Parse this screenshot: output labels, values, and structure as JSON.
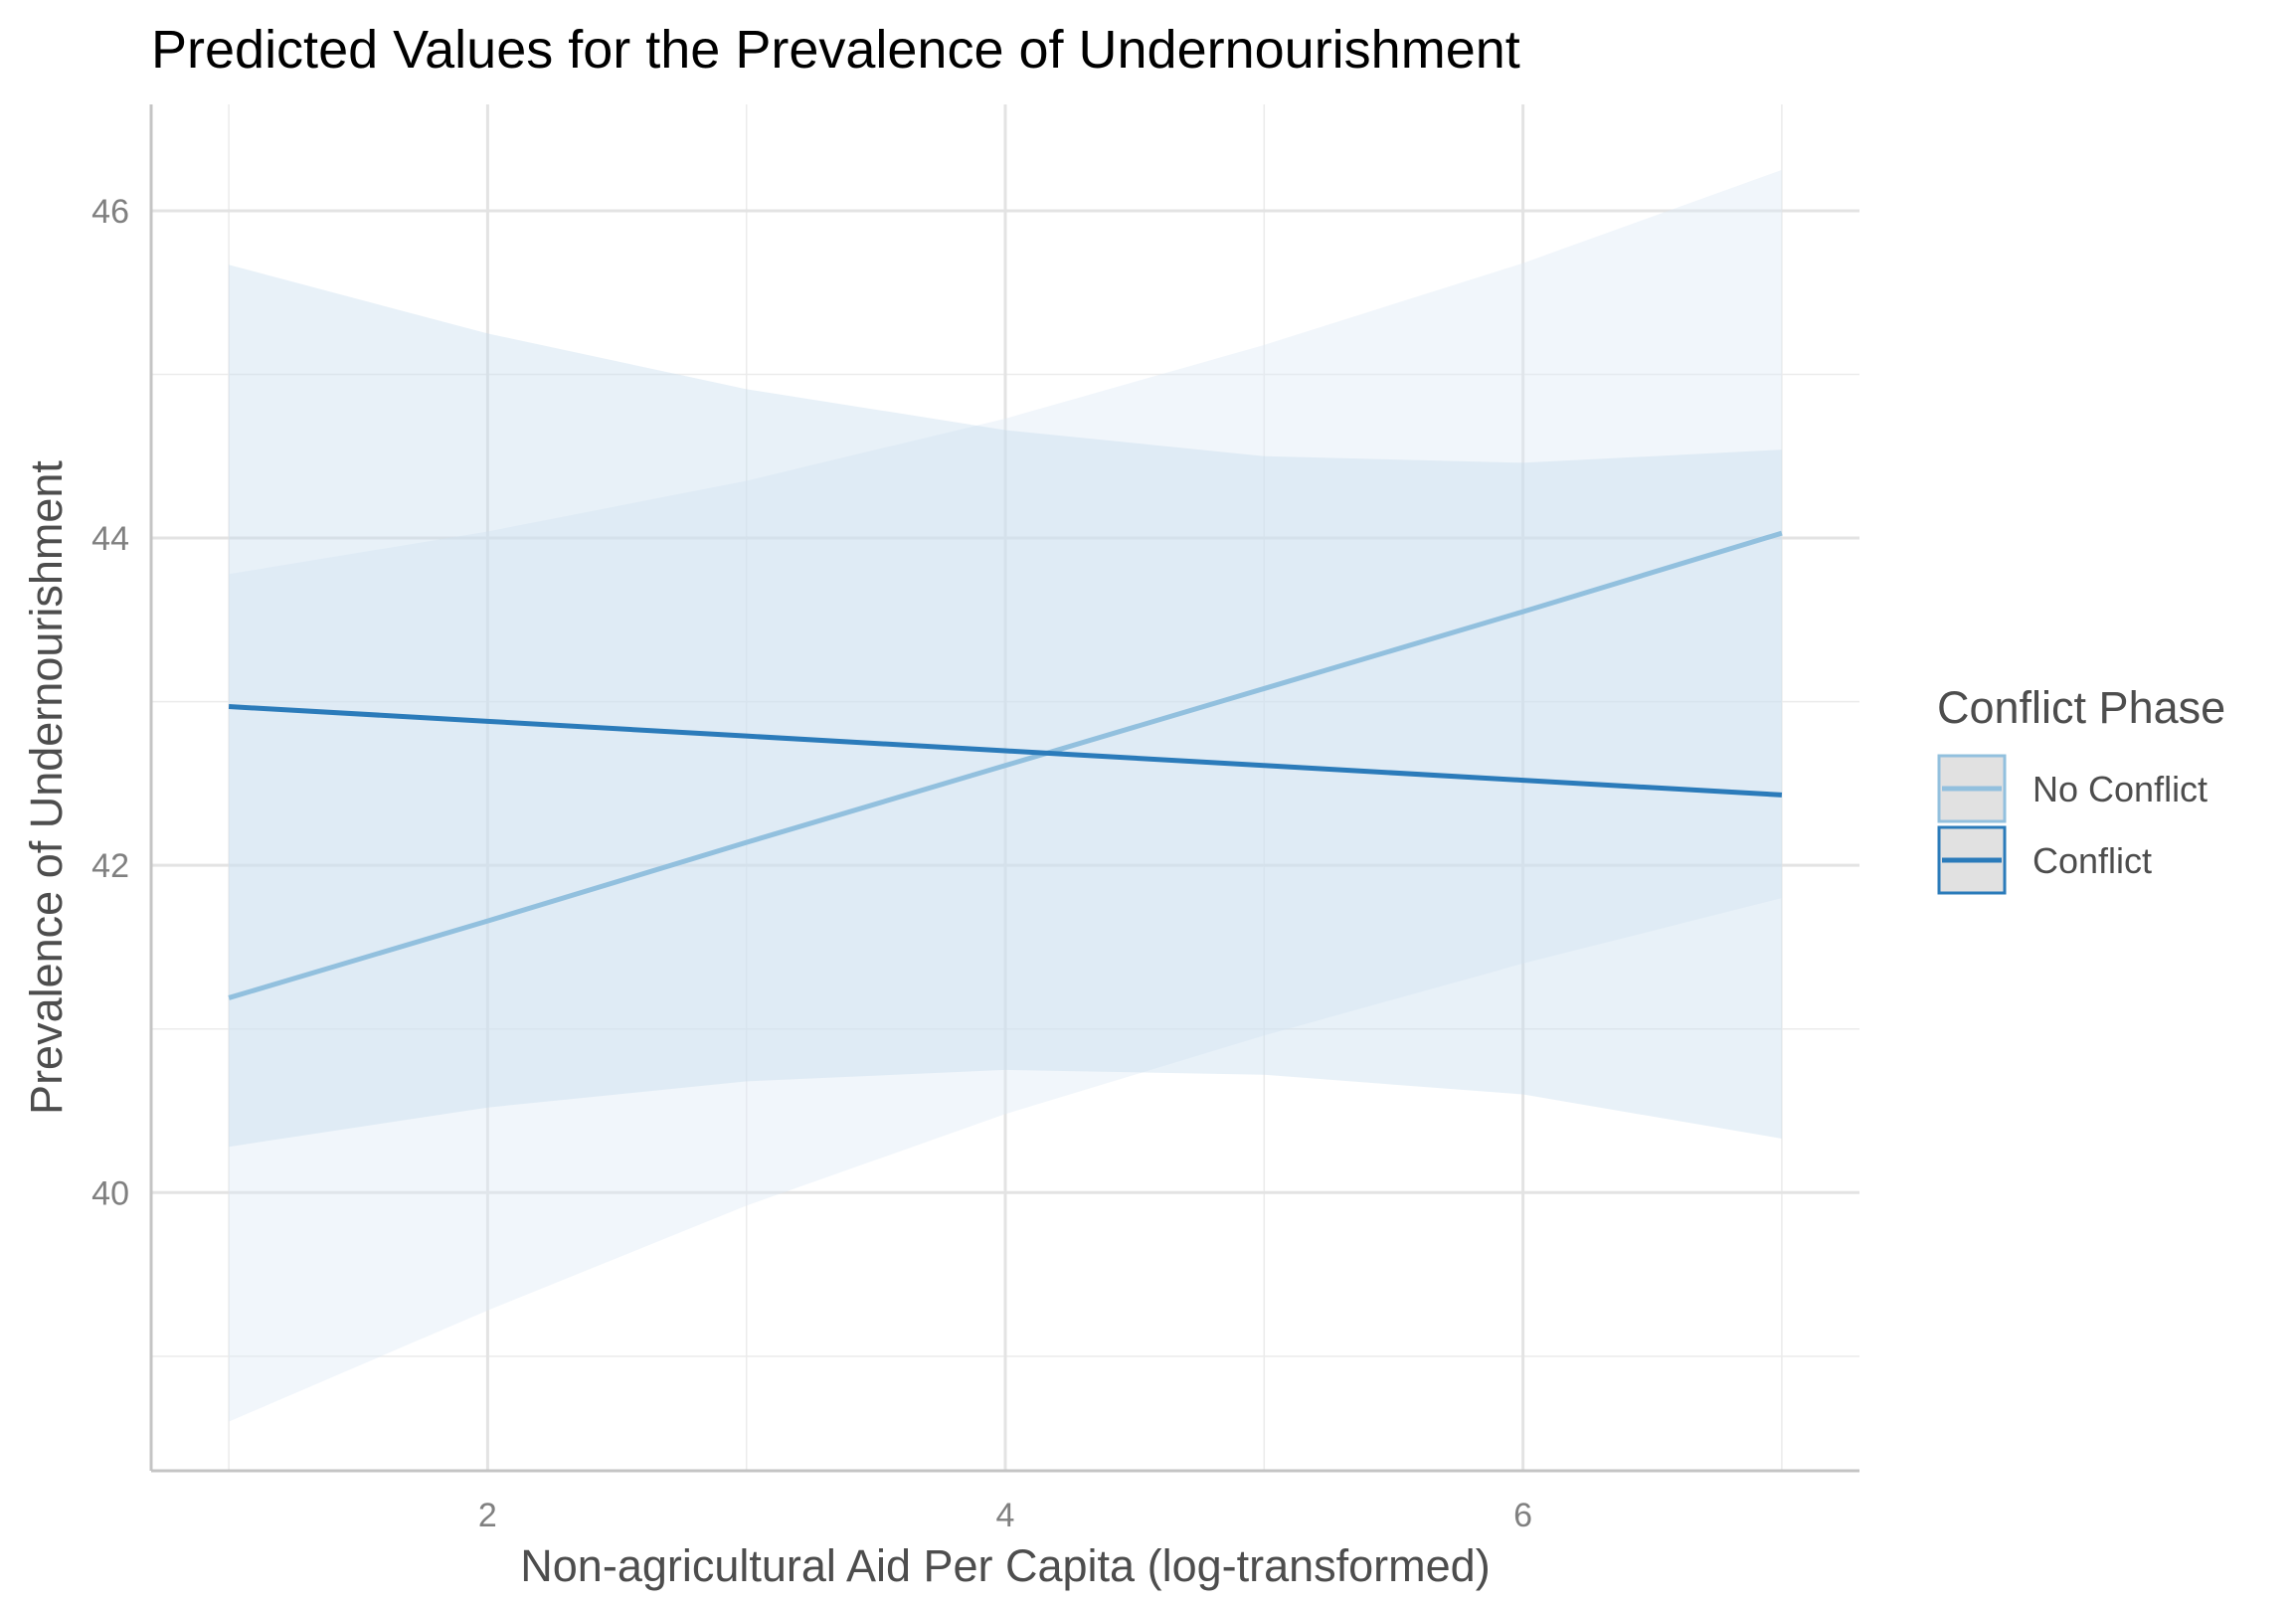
{
  "chart_data": {
    "type": "line",
    "title": "Predicted Values for the Prevalence of Undernourishment",
    "xlabel": "Non-agricultural Aid Per Capita (log-transformed)",
    "ylabel": "Prevalence of Undernourishment",
    "xlim": [
      0.7,
      7.3
    ],
    "ylim": [
      38.3,
      46.65
    ],
    "x_ticks": [
      2,
      4,
      6
    ],
    "x_tick_labels": [
      "2",
      "4",
      "6"
    ],
    "y_ticks": [
      40,
      42,
      44,
      46
    ],
    "y_tick_labels": [
      "40",
      "42",
      "44",
      "46"
    ],
    "grid": true,
    "legend": {
      "title": "Conflict Phase",
      "placement": "right"
    },
    "series": [
      {
        "name": "No Conflict",
        "color": "#92c0de",
        "ribbon_color": "#dbe9f5",
        "x": [
          1,
          2,
          3,
          4,
          5,
          6,
          7
        ],
        "y": [
          41.19,
          41.66,
          42.14,
          42.61,
          43.08,
          43.55,
          44.03
        ],
        "lower": [
          38.6,
          39.28,
          39.92,
          40.48,
          40.96,
          41.4,
          41.8
        ],
        "upper": [
          43.78,
          44.04,
          44.35,
          44.73,
          45.18,
          45.68,
          46.25
        ]
      },
      {
        "name": "Conflict",
        "color": "#2b7bba",
        "ribbon_color": "#c6dcee",
        "x": [
          1,
          2,
          3,
          4,
          5,
          6,
          7
        ],
        "y": [
          42.97,
          42.88,
          42.79,
          42.7,
          42.61,
          42.52,
          42.43
        ],
        "lower": [
          40.28,
          40.52,
          40.68,
          40.75,
          40.72,
          40.6,
          40.33
        ],
        "upper": [
          45.67,
          45.25,
          44.91,
          44.66,
          44.5,
          44.46,
          44.54
        ]
      }
    ]
  }
}
